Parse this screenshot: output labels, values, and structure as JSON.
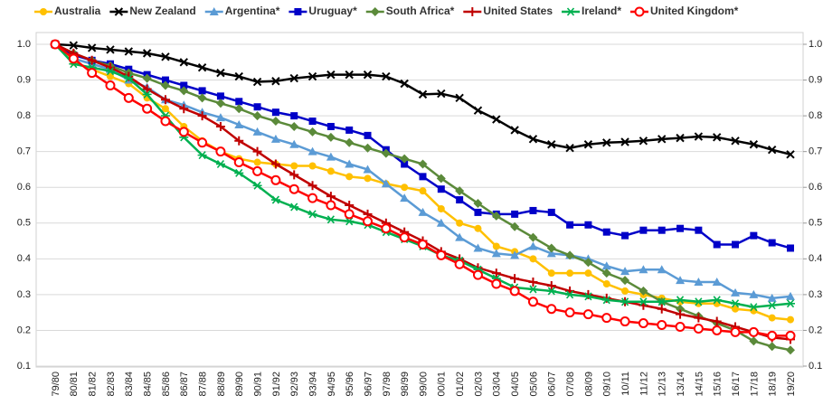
{
  "chart_data": {
    "type": "line",
    "categories": [
      "79/80",
      "80/81",
      "81/82",
      "82/83",
      "83/84",
      "84/85",
      "85/86",
      "86/87",
      "87/88",
      "88/89",
      "89/90",
      "90/91",
      "91/92",
      "92/93",
      "93/94",
      "94/95",
      "95/96",
      "96/97",
      "97/98",
      "98/99",
      "99/00",
      "00/01",
      "01/02",
      "02/03",
      "03/04",
      "04/05",
      "05/06",
      "06/07",
      "07/08",
      "08/09",
      "09/10",
      "10/11",
      "11/12",
      "12/13",
      "13/14",
      "14/15",
      "15/16",
      "16/17",
      "17/18",
      "18/19",
      "19/20"
    ],
    "series": [
      {
        "name": "Australia",
        "color": "#ffc000",
        "marker": "circle",
        "values": [
          1.0,
          0.95,
          0.93,
          0.91,
          0.89,
          0.85,
          0.82,
          0.77,
          0.73,
          0.7,
          0.68,
          0.67,
          0.665,
          0.66,
          0.66,
          0.645,
          0.63,
          0.625,
          0.61,
          0.6,
          0.59,
          0.54,
          0.5,
          0.485,
          0.435,
          0.42,
          0.4,
          0.36,
          0.36,
          0.36,
          0.33,
          0.31,
          0.3,
          0.29,
          0.28,
          0.275,
          0.275,
          0.26,
          0.255,
          0.235,
          0.23
        ]
      },
      {
        "name": "New Zealand",
        "color": "#000000",
        "marker": "x",
        "values": [
          1.0,
          0.997,
          0.99,
          0.985,
          0.98,
          0.975,
          0.965,
          0.95,
          0.935,
          0.92,
          0.91,
          0.895,
          0.897,
          0.905,
          0.91,
          0.915,
          0.915,
          0.915,
          0.91,
          0.89,
          0.86,
          0.862,
          0.85,
          0.815,
          0.79,
          0.76,
          0.735,
          0.72,
          0.71,
          0.72,
          0.725,
          0.727,
          0.73,
          0.735,
          0.738,
          0.742,
          0.74,
          0.73,
          0.72,
          0.705,
          0.692
        ]
      },
      {
        "name": "Argentina*",
        "color": "#5b9bd5",
        "marker": "triangle",
        "values": [
          1.0,
          0.96,
          0.945,
          0.93,
          0.9,
          0.88,
          0.845,
          0.83,
          0.81,
          0.795,
          0.775,
          0.755,
          0.735,
          0.72,
          0.7,
          0.685,
          0.665,
          0.65,
          0.61,
          0.57,
          0.53,
          0.5,
          0.46,
          0.43,
          0.415,
          0.41,
          0.435,
          0.415,
          0.41,
          0.4,
          0.38,
          0.365,
          0.37,
          0.37,
          0.34,
          0.335,
          0.335,
          0.305,
          0.3,
          0.29,
          0.295
        ]
      },
      {
        "name": "Uruguay*",
        "color": "#0000c8",
        "marker": "square",
        "values": [
          1.0,
          0.97,
          0.955,
          0.945,
          0.93,
          0.915,
          0.9,
          0.885,
          0.87,
          0.855,
          0.84,
          0.825,
          0.81,
          0.8,
          0.785,
          0.77,
          0.76,
          0.745,
          0.705,
          0.665,
          0.63,
          0.595,
          0.565,
          0.53,
          0.525,
          0.525,
          0.535,
          0.53,
          0.495,
          0.495,
          0.475,
          0.465,
          0.48,
          0.48,
          0.485,
          0.48,
          0.44,
          0.44,
          0.465,
          0.445,
          0.43
        ]
      },
      {
        "name": "South Africa*",
        "color": "#5b8a3a",
        "marker": "diamond",
        "values": [
          1.0,
          0.975,
          0.955,
          0.94,
          0.92,
          0.905,
          0.885,
          0.87,
          0.85,
          0.835,
          0.82,
          0.8,
          0.785,
          0.77,
          0.755,
          0.74,
          0.725,
          0.71,
          0.695,
          0.68,
          0.665,
          0.625,
          0.59,
          0.555,
          0.52,
          0.49,
          0.46,
          0.43,
          0.41,
          0.39,
          0.36,
          0.34,
          0.31,
          0.28,
          0.26,
          0.24,
          0.22,
          0.2,
          0.17,
          0.155,
          0.145
        ]
      },
      {
        "name": "United States",
        "color": "#c00000",
        "marker": "plus",
        "values": [
          1.0,
          0.975,
          0.955,
          0.935,
          0.91,
          0.875,
          0.845,
          0.82,
          0.8,
          0.77,
          0.73,
          0.7,
          0.665,
          0.635,
          0.605,
          0.575,
          0.55,
          0.525,
          0.5,
          0.475,
          0.45,
          0.42,
          0.4,
          0.375,
          0.36,
          0.345,
          0.335,
          0.325,
          0.31,
          0.3,
          0.29,
          0.28,
          0.27,
          0.26,
          0.245,
          0.235,
          0.225,
          0.21,
          0.195,
          0.18,
          0.175
        ]
      },
      {
        "name": "Ireland*",
        "color": "#00b050",
        "marker": "star",
        "values": [
          1.0,
          0.945,
          0.935,
          0.925,
          0.905,
          0.86,
          0.8,
          0.74,
          0.69,
          0.665,
          0.64,
          0.605,
          0.565,
          0.545,
          0.525,
          0.51,
          0.505,
          0.495,
          0.475,
          0.455,
          0.435,
          0.41,
          0.395,
          0.37,
          0.345,
          0.32,
          0.315,
          0.31,
          0.3,
          0.295,
          0.285,
          0.28,
          0.28,
          0.28,
          0.285,
          0.28,
          0.285,
          0.275,
          0.265,
          0.27,
          0.275
        ]
      },
      {
        "name": "United Kingdom*",
        "color": "#ff0000",
        "marker": "open-circle",
        "values": [
          1.0,
          0.96,
          0.92,
          0.885,
          0.85,
          0.82,
          0.785,
          0.755,
          0.725,
          0.7,
          0.67,
          0.645,
          0.62,
          0.595,
          0.57,
          0.55,
          0.525,
          0.505,
          0.485,
          0.46,
          0.44,
          0.41,
          0.385,
          0.355,
          0.33,
          0.31,
          0.28,
          0.26,
          0.25,
          0.245,
          0.235,
          0.225,
          0.22,
          0.215,
          0.21,
          0.205,
          0.2,
          0.195,
          0.195,
          0.185,
          0.185
        ]
      }
    ],
    "ylim": [
      0.1,
      1.0
    ],
    "yticks": [
      {
        "value": 1,
        "label": "1.0"
      },
      0.9,
      0.8,
      0.7,
      0.6,
      0.5,
      0.4,
      0.3,
      0.2,
      0.1
    ],
    "y2lim": [
      0.1,
      1.0
    ],
    "y2ticks": [
      {
        "value": 1,
        "label": "1.0"
      },
      0.9,
      0.8,
      0.7,
      0.6,
      0.5,
      0.4,
      0.3,
      0.2,
      0.1
    ],
    "grid": true,
    "legend": "top"
  }
}
